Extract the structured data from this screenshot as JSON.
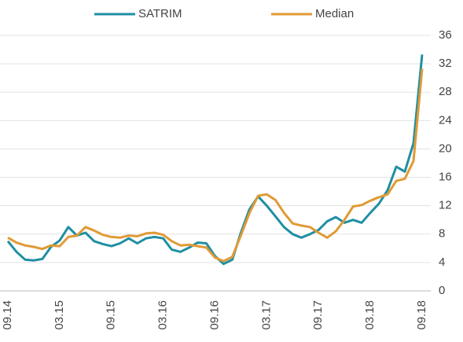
{
  "chart_data": {
    "type": "line",
    "categories": [
      "09.14",
      null,
      null,
      null,
      null,
      null,
      "03.15",
      null,
      null,
      null,
      null,
      null,
      "09.15",
      null,
      null,
      null,
      null,
      null,
      "03.16",
      null,
      null,
      null,
      null,
      null,
      "09.16",
      null,
      null,
      null,
      null,
      null,
      "03.17",
      null,
      null,
      null,
      null,
      null,
      "09.17",
      null,
      null,
      null,
      null,
      null,
      "03.18",
      null,
      null,
      null,
      null,
      null,
      "09.18"
    ],
    "series": [
      {
        "name": "SATRIM",
        "color": "#1f8fa3",
        "values": [
          7.0,
          5.5,
          4.4,
          4.3,
          4.5,
          6.2,
          7.1,
          9.0,
          7.8,
          8.2,
          7.0,
          6.6,
          6.3,
          6.7,
          7.4,
          6.7,
          7.4,
          7.6,
          7.4,
          5.8,
          5.5,
          6.1,
          6.8,
          6.7,
          4.9,
          3.8,
          4.4,
          8.2,
          11.5,
          13.3,
          12.0,
          10.5,
          9.0,
          8.0,
          7.5,
          8.0,
          8.6,
          9.8,
          10.4,
          9.6,
          10.0,
          9.6,
          11.0,
          12.3,
          14.2,
          17.5,
          16.8,
          20.8,
          33.3
        ]
      },
      {
        "name": "Median",
        "color": "#e09a35",
        "values": [
          7.5,
          6.8,
          6.4,
          6.2,
          5.9,
          6.4,
          6.3,
          7.6,
          7.8,
          9.0,
          8.5,
          7.9,
          7.6,
          7.5,
          7.8,
          7.7,
          8.1,
          8.2,
          7.9,
          7.0,
          6.4,
          6.5,
          6.3,
          6.1,
          4.7,
          4.2,
          4.8,
          7.8,
          11.0,
          13.4,
          13.6,
          12.8,
          11.0,
          9.5,
          9.2,
          9.0,
          8.2,
          7.5,
          8.4,
          10.0,
          11.9,
          12.1,
          12.7,
          13.2,
          13.6,
          15.5,
          15.8,
          18.3,
          31.3
        ]
      }
    ],
    "ylim": [
      0,
      36
    ],
    "yticks": [
      0,
      4,
      8,
      12,
      16,
      20,
      24,
      28,
      32,
      36
    ],
    "grid": true
  }
}
